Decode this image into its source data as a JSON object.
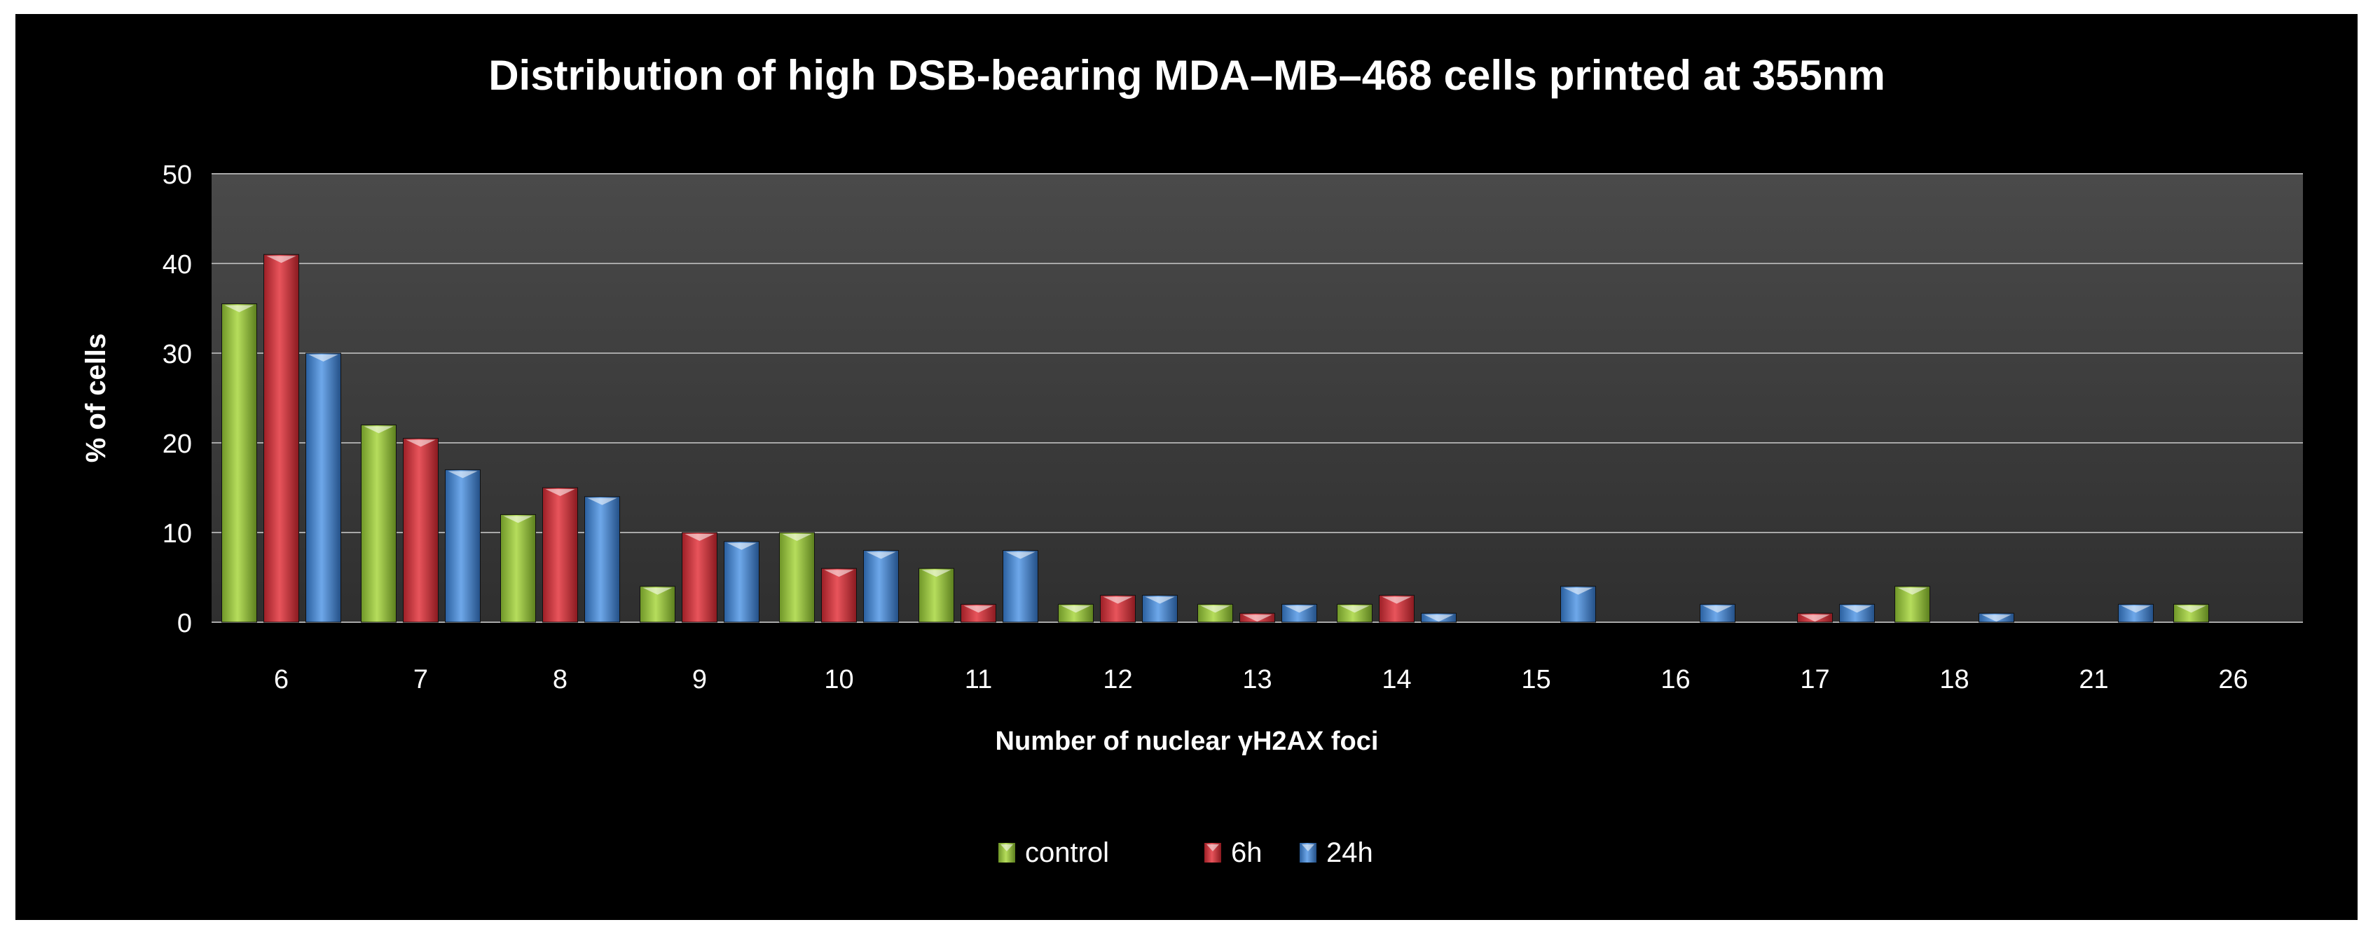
{
  "chart_data": {
    "type": "bar",
    "title": "Distribution of high DSB-bearing MDA–MB–468 cells printed at 355nm",
    "xlabel": "Number of nuclear γH2AX foci",
    "ylabel": "% of cells",
    "ylim": [
      0,
      50
    ],
    "yticks": [
      0,
      10,
      20,
      30,
      40,
      50
    ],
    "grid": true,
    "legend_position": "bottom",
    "categories": [
      "6",
      "7",
      "8",
      "9",
      "10",
      "11",
      "12",
      "13",
      "14",
      "15",
      "16",
      "17",
      "18",
      "21",
      "26"
    ],
    "series": [
      {
        "name": "control",
        "color": "#8db83a",
        "values": [
          35.5,
          22,
          12,
          4,
          10,
          6,
          2,
          2,
          2,
          0,
          0,
          0,
          4,
          0,
          2
        ]
      },
      {
        "name": "6h",
        "color": "#c8323a",
        "values": [
          41,
          20.5,
          15,
          10,
          6,
          2,
          3,
          1,
          3,
          0,
          0,
          1,
          0,
          0,
          0
        ]
      },
      {
        "name": "24h",
        "color": "#3d7cc9",
        "values": [
          30,
          17,
          14,
          9,
          8,
          8,
          3,
          2,
          1,
          4,
          2,
          2,
          1,
          2,
          0
        ]
      }
    ]
  }
}
